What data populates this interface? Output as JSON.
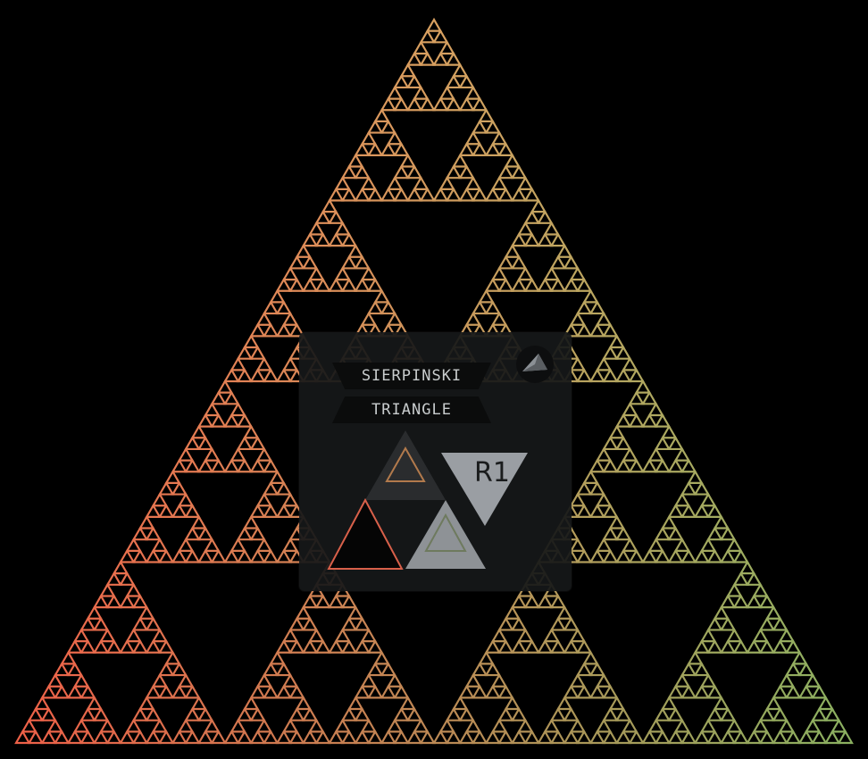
{
  "title": {
    "line1": "SIERPINSKI",
    "line2": "TRIANGLE"
  },
  "badge": {
    "text": "R1"
  },
  "colors": {
    "background": "#000000",
    "top": "#d8a060",
    "left_bottom": "#ee6048",
    "right_bottom": "#8ab060",
    "card": "#161819",
    "badge_grey": "#9a9ea3"
  },
  "icons": [
    "pyramid-icon",
    "sierpinski-emblem-icon"
  ]
}
